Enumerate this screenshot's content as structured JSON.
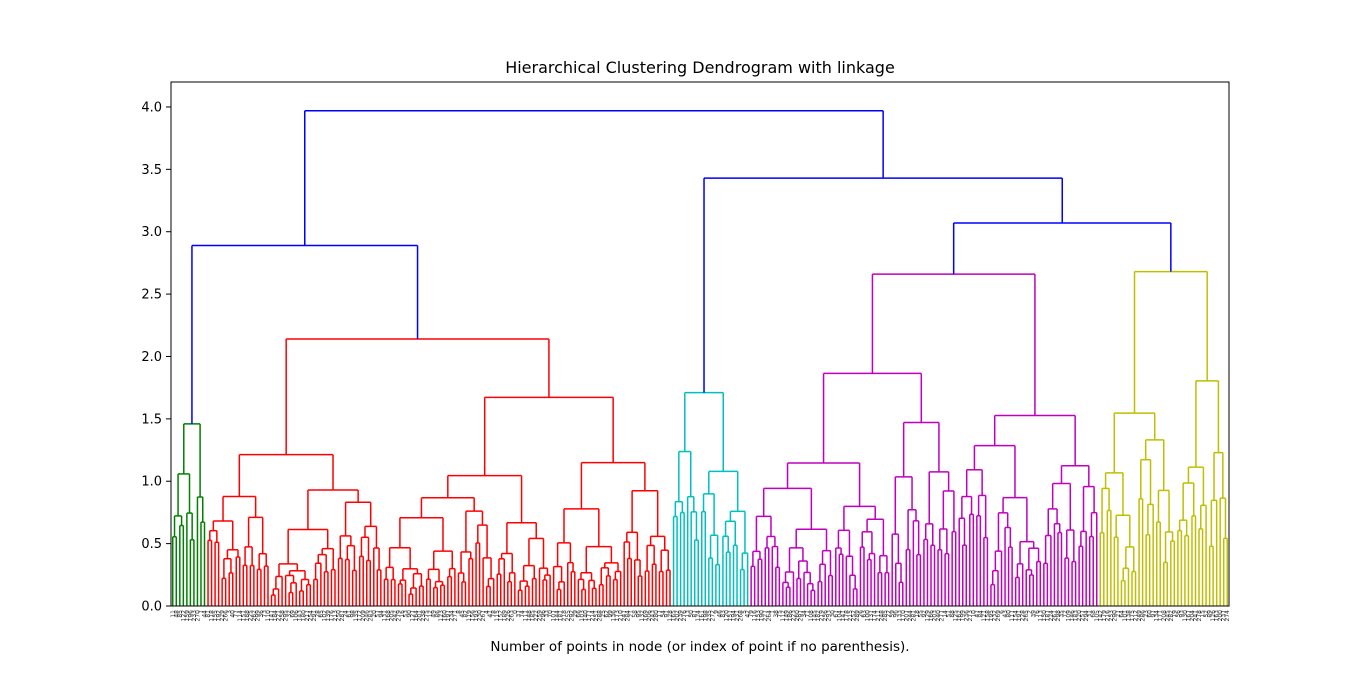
{
  "chart_data": {
    "type": "dendrogram",
    "title": "Hierarchical Clustering Dendrogram with linkage",
    "xlabel": "Number of points in node (or index of point if no parenthesis).",
    "ylabel": "",
    "ylim": [
      0,
      4.2
    ],
    "yticks": [
      "0.0",
      "0.5",
      "1.0",
      "1.5",
      "2.0",
      "2.5",
      "3.0",
      "3.5",
      "4.0"
    ],
    "grid": false,
    "leaf_count": 300,
    "link_color_above_threshold": "#0000ff",
    "clusters": [
      {
        "color": "#008000",
        "leaves": 10,
        "height": 1.46
      },
      {
        "color": "#ff0000",
        "leaves": 132,
        "height": 2.14
      },
      {
        "color": "#00bfbf",
        "leaves": 22,
        "height": 1.71
      },
      {
        "color": "#bf00bf",
        "leaves": 99,
        "height": 2.66
      },
      {
        "color": "#bfbf00",
        "leaves": 37,
        "height": 2.68
      }
    ],
    "top_merges": [
      {
        "left": "green",
        "right": "red",
        "height": 2.89
      },
      {
        "left": "magenta",
        "right": "yellow",
        "height": 3.07
      },
      {
        "left": "cyan",
        "right": "magenta+yellow",
        "height": 3.43
      },
      {
        "left": "green+red",
        "right": "cyan+magenta+yellow",
        "height": 3.97
      }
    ]
  }
}
